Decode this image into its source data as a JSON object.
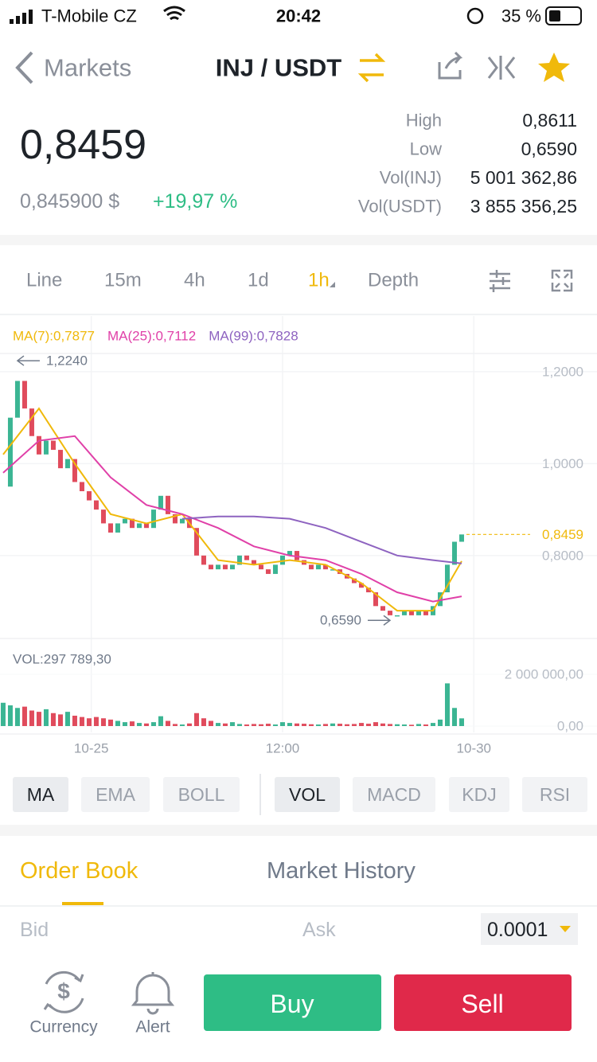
{
  "status_bar": {
    "carrier": "T-Mobile CZ",
    "time": "20:42",
    "battery": "35 %"
  },
  "header": {
    "back": "Markets",
    "pair": "INJ / USDT"
  },
  "ticker": {
    "price": "0,8459",
    "price_usd": "0,845900 $",
    "change": "+19,97 %",
    "stats": [
      {
        "label": "High",
        "value": "0,8611"
      },
      {
        "label": "Low",
        "value": "0,6590"
      },
      {
        "label": "Vol(INJ)",
        "value": "5 001 362,86"
      },
      {
        "label": "Vol(USDT)",
        "value": "3 855 356,25"
      }
    ]
  },
  "intervals": [
    {
      "label": "Line",
      "active": false
    },
    {
      "label": "15m",
      "active": false
    },
    {
      "label": "4h",
      "active": false
    },
    {
      "label": "1d",
      "active": false
    },
    {
      "label": "1h",
      "active": true
    },
    {
      "label": "Depth",
      "active": false
    }
  ],
  "chart_data": {
    "type": "candlestick",
    "color_up": "#3bb593",
    "color_down": "#e04b5c",
    "xlim": [
      -0.44,
      82.89
    ],
    "xticks": [
      {
        "value": 12.3,
        "label": "10-25"
      },
      {
        "value": 39,
        "label": "12:00"
      },
      {
        "value": 65.7,
        "label": "10-30"
      }
    ],
    "ylim": [
      0.623,
      1.238
    ],
    "yticks": [
      {
        "value": 0.8,
        "label": "0,8000"
      },
      {
        "value": 1.0,
        "label": "1,0000"
      },
      {
        "value": 1.2,
        "label": "1,2000"
      }
    ],
    "values": [
      0.95,
      1.1,
      1.18,
      1.12,
      1.06,
      1.02,
      1.05,
      1.03,
      0.99,
      1.01,
      0.96,
      0.94,
      0.92,
      0.9,
      0.87,
      0.85,
      0.87,
      0.88,
      0.86,
      0.87,
      0.86,
      0.9,
      0.93,
      0.89,
      0.87,
      0.88,
      0.86,
      0.8,
      0.78,
      0.77,
      0.78,
      0.77,
      0.78,
      0.8,
      0.79,
      0.78,
      0.77,
      0.76,
      0.78,
      0.8,
      0.81,
      0.79,
      0.78,
      0.77,
      0.78,
      0.77,
      0.77,
      0.76,
      0.75,
      0.74,
      0.73,
      0.72,
      0.69,
      0.68,
      0.67,
      0.67,
      0.68,
      0.67,
      0.68,
      0.67,
      0.69,
      0.72,
      0.78,
      0.83,
      0.8459
    ],
    "last_price": {
      "value": 0.8459,
      "label": "0,8459"
    },
    "high_marker": {
      "value": 1.224,
      "label": "1,2240"
    },
    "low_marker": {
      "value": 0.659,
      "label": "0,6590"
    },
    "ma_x": [
      0,
      5,
      10,
      15,
      20,
      25,
      30,
      35,
      40,
      45,
      50,
      55,
      60,
      64
    ],
    "series": [
      {
        "name": "MA(7):0,7877",
        "color": "#f0b90b",
        "values": [
          1.02,
          1.12,
          1.0,
          0.89,
          0.87,
          0.89,
          0.79,
          0.78,
          0.79,
          0.78,
          0.74,
          0.68,
          0.68,
          0.7877
        ]
      },
      {
        "name": "MA(25):0,7112",
        "color": "#e040a8",
        "values": [
          0.98,
          1.05,
          1.06,
          0.97,
          0.91,
          0.89,
          0.86,
          0.82,
          0.8,
          0.79,
          0.76,
          0.72,
          0.7,
          0.7112
        ]
      },
      {
        "name": "MA(99):0,7828",
        "color": "#8e63c0",
        "values": [
          null,
          null,
          null,
          null,
          null,
          0.88,
          0.885,
          0.885,
          0.88,
          0.86,
          0.83,
          0.8,
          0.79,
          0.7828
        ]
      }
    ],
    "volume": {
      "label": "VOL:297 789,30",
      "ylim": [
        -246000,
        2985000
      ],
      "yticks": [
        {
          "value": 0,
          "label": "0,00"
        },
        {
          "value": 2000000,
          "label": "2 000 000,00"
        }
      ],
      "values": [
        900000,
        800000,
        700000,
        750000,
        600000,
        550000,
        650000,
        500000,
        450000,
        550000,
        400000,
        350000,
        300000,
        350000,
        300000,
        250000,
        200000,
        150000,
        180000,
        120000,
        100000,
        150000,
        380000,
        200000,
        80000,
        60000,
        100000,
        500000,
        300000,
        200000,
        120000,
        100000,
        150000,
        80000,
        60000,
        80000,
        70000,
        90000,
        60000,
        150000,
        120000,
        100000,
        90000,
        70000,
        60000,
        80000,
        100000,
        90000,
        70000,
        80000,
        120000,
        90000,
        150000,
        100000,
        80000,
        70000,
        60000,
        50000,
        80000,
        60000,
        120000,
        250000,
        1650000,
        700000,
        297789.3
      ]
    }
  },
  "indicators": {
    "main": [
      {
        "label": "MA",
        "active": true
      },
      {
        "label": "EMA",
        "active": false
      },
      {
        "label": "BOLL",
        "active": false
      }
    ],
    "sub": [
      {
        "label": "VOL",
        "active": true
      },
      {
        "label": "MACD",
        "active": false
      },
      {
        "label": "KDJ",
        "active": false
      },
      {
        "label": "RSI",
        "active": false
      }
    ]
  },
  "order_book": {
    "tabs": [
      "Order Book",
      "Market History"
    ],
    "bid": "Bid",
    "ask": "Ask",
    "precision": "0.0001"
  },
  "bottom_bar": {
    "currency": "Currency",
    "alert": "Alert",
    "buy": "Buy",
    "sell": "Sell"
  }
}
